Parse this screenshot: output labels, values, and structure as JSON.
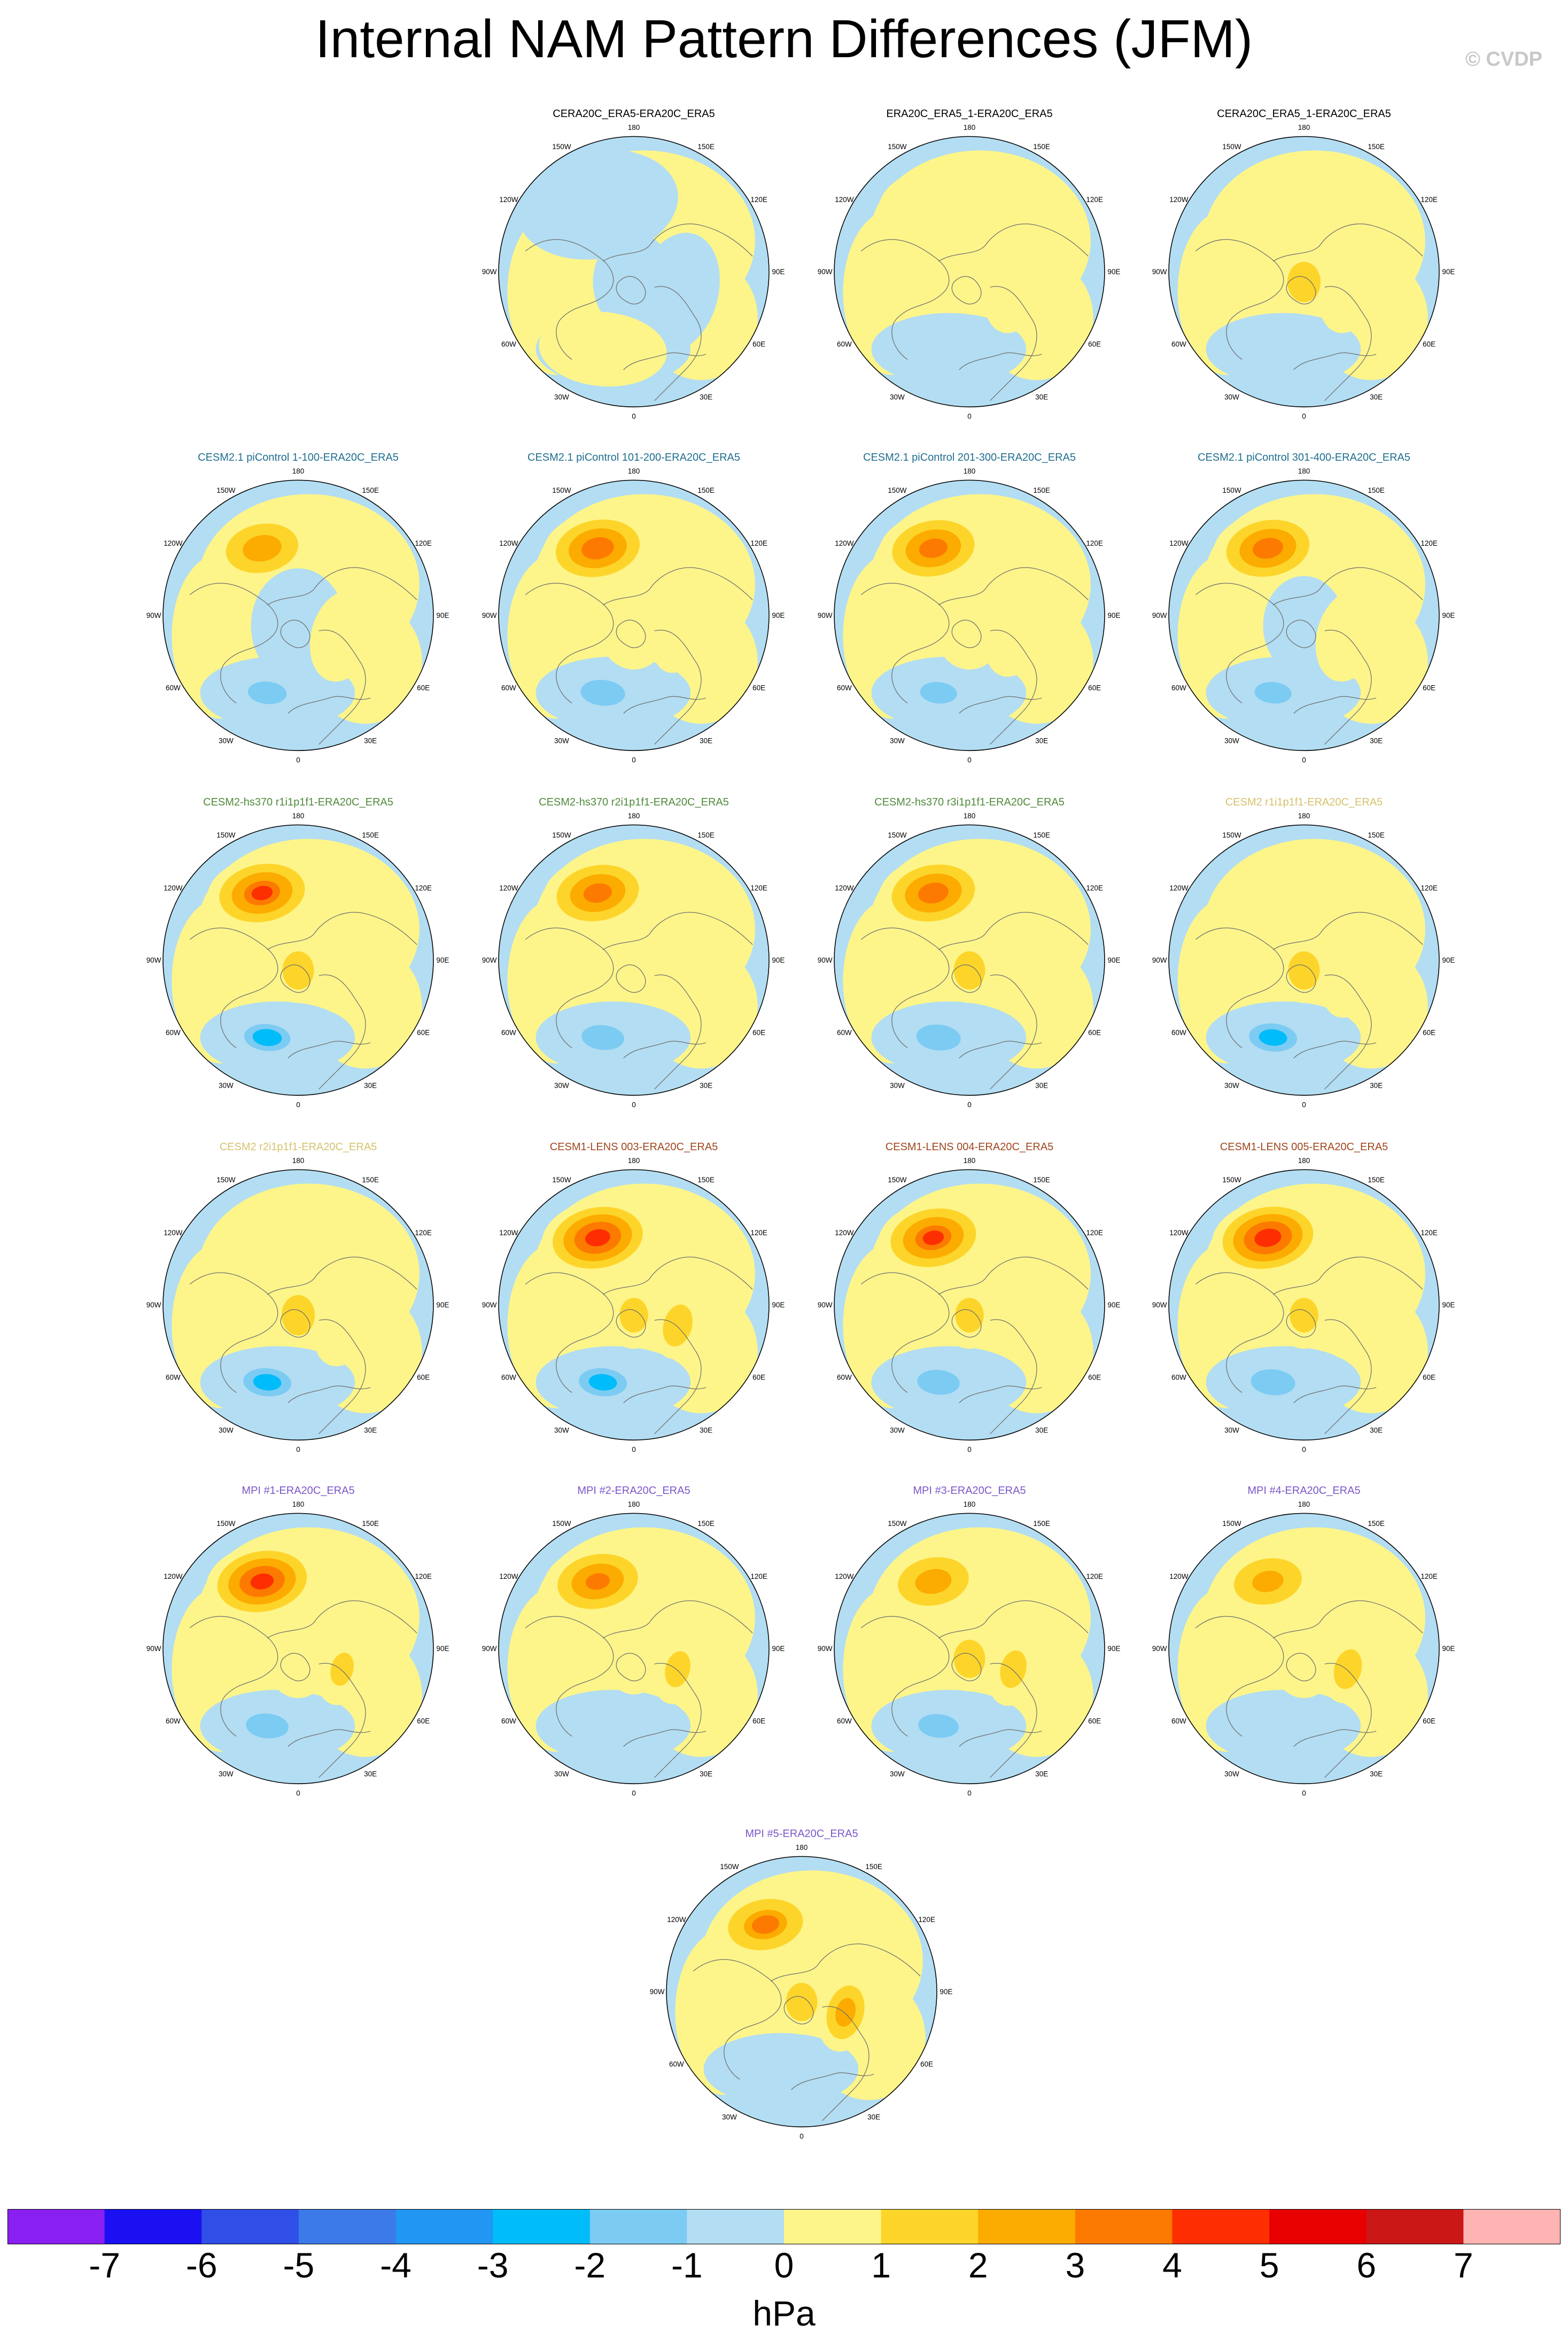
{
  "title": "Internal NAM Pattern Differences (JFM)",
  "watermark": "© CVDP",
  "lon_labels": [
    "180",
    "150E",
    "120E",
    "90E",
    "60E",
    "30E",
    "0",
    "30W",
    "60W",
    "90W",
    "120W",
    "150W"
  ],
  "colorbar": {
    "ticks": [
      "-7",
      "-6",
      "-5",
      "-4",
      "-3",
      "-2",
      "-1",
      "0",
      "1",
      "2",
      "3",
      "4",
      "5",
      "6",
      "7"
    ],
    "units": "hPa",
    "colors": [
      "#8a1ff2",
      "#1a10f2",
      "#2f4fe6",
      "#3b7ae8",
      "#2196f3",
      "#00bcf9",
      "#7ccbf3",
      "#b3ddf2",
      "#fdf58a",
      "#fdd52a",
      "#fcab00",
      "#fc7a00",
      "#fd2e00",
      "#e80000",
      "#cc1717",
      "#ffb4b4"
    ]
  },
  "chart_data": [
    {
      "title": "CERA20C_ERA5-ERA20C_ERA5",
      "title_color": "#000000",
      "pac_max": 0.3,
      "atl_min": -0.3,
      "eur_max": 0.3,
      "arc": 0.4
    },
    {
      "title": "ERA20C_ERA5_1-ERA20C_ERA5",
      "title_color": "#000000",
      "pac_max": 0.6,
      "atl_min": -1.3,
      "eur_max": 0.6,
      "arc": 1.4
    },
    {
      "title": "CERA20C_ERA5_1-ERA20C_ERA5",
      "title_color": "#000000",
      "pac_max": 0.7,
      "atl_min": -1.4,
      "eur_max": 0.6,
      "arc": 1.5
    },
    {
      "title": "CESM2.1 piControl 1-100-ERA20C_ERA5",
      "title_color": "#1f6e8f",
      "pac_max": 3.3,
      "atl_min": -1.8,
      "eur_max": 0.5,
      "arc": 0.3
    },
    {
      "title": "CESM2.1 piControl 101-200-ERA20C_ERA5",
      "title_color": "#1f6e8f",
      "pac_max": 4.4,
      "atl_min": -2.4,
      "eur_max": 0.7,
      "arc": 0.5
    },
    {
      "title": "CESM2.1 piControl 201-300-ERA20C_ERA5",
      "title_color": "#1f6e8f",
      "pac_max": 4.2,
      "atl_min": -1.9,
      "eur_max": 0.6,
      "arc": 0.5
    },
    {
      "title": "CESM2.1 piControl 301-400-ERA20C_ERA5",
      "title_color": "#1f6e8f",
      "pac_max": 4.3,
      "atl_min": -1.9,
      "eur_max": 0.5,
      "arc": 0.4
    },
    {
      "title": "CESM2-hs370 r1i1p1f1-ERA20C_ERA5",
      "title_color": "#4f8a3a",
      "pac_max": 4.6,
      "atl_min": -2.5,
      "eur_max": 1.4,
      "arc": 1.6
    },
    {
      "title": "CESM2-hs370 r2i1p1f1-ERA20C_ERA5",
      "title_color": "#4f8a3a",
      "pac_max": 4.2,
      "atl_min": -1.6,
      "eur_max": 1.2,
      "arc": 1.4
    },
    {
      "title": "CESM2-hs370 r3i1p1f1-ERA20C_ERA5",
      "title_color": "#4f8a3a",
      "pac_max": 4.3,
      "atl_min": -2.4,
      "eur_max": 1.3,
      "arc": 1.6
    },
    {
      "title": "CESM2 r1i1p1f1-ERA20C_ERA5",
      "title_color": "#d6c26c",
      "pac_max": 0.8,
      "atl_min": -2.6,
      "eur_max": 0.7,
      "arc": 1.6
    },
    {
      "title": "CESM2 r2i1p1f1-ERA20C_ERA5",
      "title_color": "#d6c26c",
      "pac_max": 0.7,
      "atl_min": -2.6,
      "eur_max": 0.6,
      "arc": 1.5
    },
    {
      "title": "CESM1-LENS 003-ERA20C_ERA5",
      "title_color": "#a0461d",
      "pac_max": 5.3,
      "atl_min": -2.6,
      "eur_max": 1.5,
      "arc": 1.8
    },
    {
      "title": "CESM1-LENS 004-ERA20C_ERA5",
      "title_color": "#a0461d",
      "pac_max": 4.6,
      "atl_min": -2.3,
      "eur_max": 1.3,
      "arc": 1.8
    },
    {
      "title": "CESM1-LENS 005-ERA20C_ERA5",
      "title_color": "#a0461d",
      "pac_max": 5.4,
      "atl_min": -2.4,
      "eur_max": 1.4,
      "arc": 1.8
    },
    {
      "title": "MPI #1-ERA20C_ERA5",
      "title_color": "#7b57c9",
      "pac_max": 5.2,
      "atl_min": -1.6,
      "eur_max": 2.0,
      "arc": 0.6
    },
    {
      "title": "MPI #2-ERA20C_ERA5",
      "title_color": "#7b57c9",
      "pac_max": 4.0,
      "atl_min": -1.3,
      "eur_max": 1.8,
      "arc": 0.7
    },
    {
      "title": "MPI #3-ERA20C_ERA5",
      "title_color": "#7b57c9",
      "pac_max": 3.2,
      "atl_min": -1.7,
      "eur_max": 2.2,
      "arc": 1.6
    },
    {
      "title": "MPI #4-ERA20C_ERA5",
      "title_color": "#7b57c9",
      "pac_max": 3.0,
      "atl_min": -1.3,
      "eur_max": 1.6,
      "arc": 0.6
    },
    {
      "title": "MPI #5-ERA20C_ERA5",
      "title_color": "#7b57c9",
      "pac_max": 3.5,
      "atl_min": -1.2,
      "eur_max": 3.3,
      "arc": 1.6
    }
  ]
}
